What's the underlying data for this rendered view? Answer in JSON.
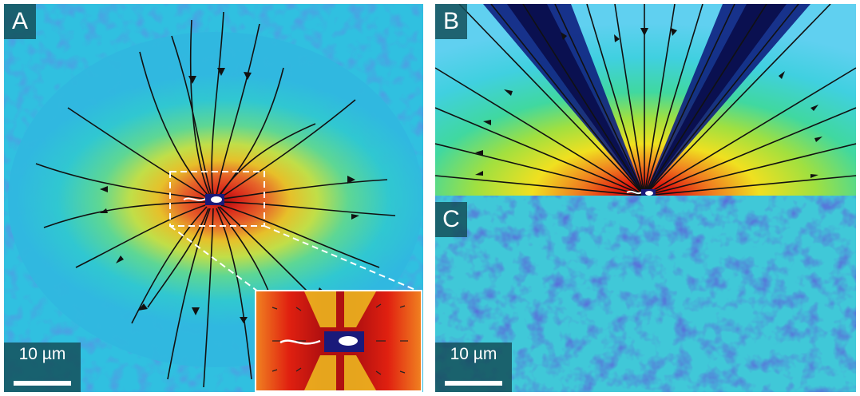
{
  "panels": {
    "a": {
      "label": "A",
      "scalebar": "10 µm"
    },
    "b": {
      "label": "B"
    },
    "c": {
      "label": "C",
      "scalebar": "10 µm"
    }
  },
  "colors": {
    "background_low": "#2a3cc8",
    "mid": "#2fd0c0",
    "high_yellow": "#f0e020",
    "peak_red": "#d01010",
    "label_bg": "#14505a"
  }
}
